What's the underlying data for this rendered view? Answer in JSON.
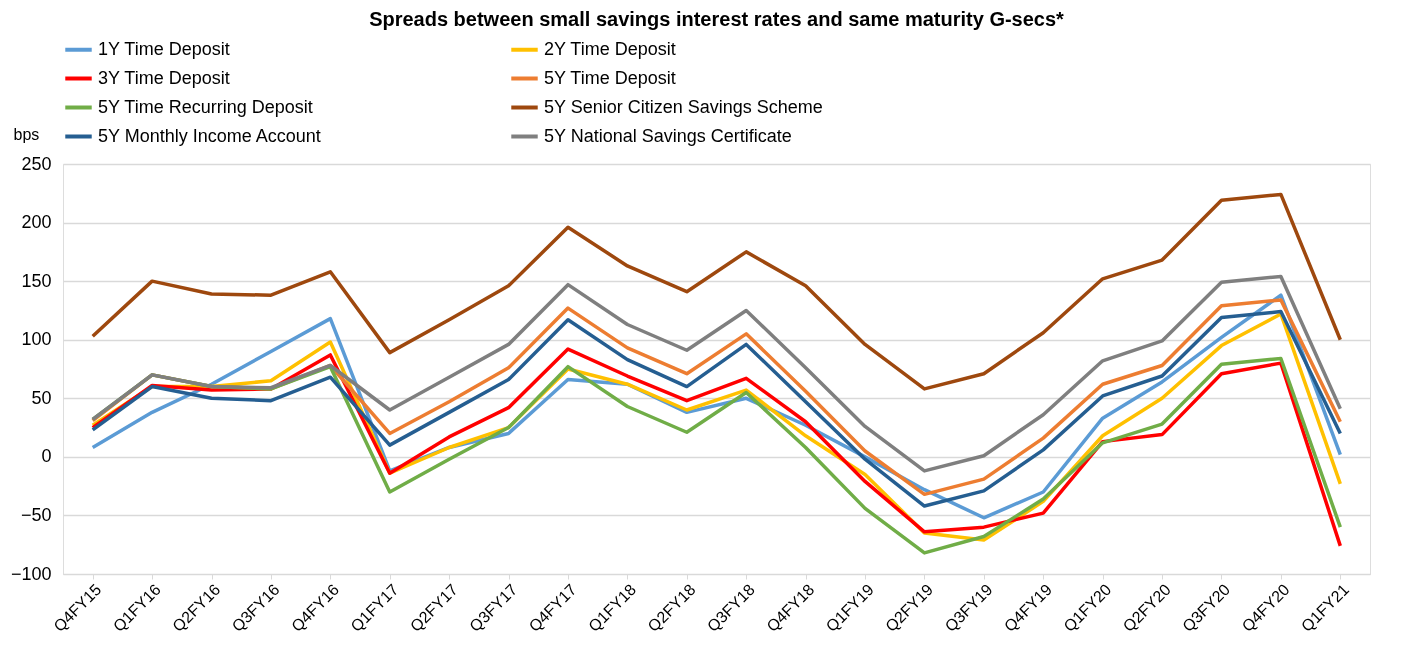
{
  "chart_data": {
    "type": "line",
    "title": "Spreads between small savings interest rates and same maturity G-secs*",
    "ylabel": "bps",
    "categories": [
      "Q4FY15",
      "Q1FY16",
      "Q2FY16",
      "Q3FY16",
      "Q4FY16",
      "Q1FY17",
      "Q2FY17",
      "Q3FY17",
      "Q4FY17",
      "Q1FY18",
      "Q2FY18",
      "Q3FY18",
      "Q4FY18",
      "Q1FY19",
      "Q2FY19",
      "Q3FY19",
      "Q4FY19",
      "Q1FY20",
      "Q2FY20",
      "Q3FY20",
      "Q4FY20",
      "Q1FY21"
    ],
    "series": [
      {
        "name": "1Y Time Deposit",
        "color": "#5b9bd5",
        "values": [
          8,
          38,
          62,
          90,
          118,
          -12,
          8,
          20,
          66,
          62,
          38,
          50,
          27,
          0,
          -28,
          -52,
          -30,
          33,
          64,
          102,
          138,
          2
        ]
      },
      {
        "name": "2Y Time Deposit",
        "color": "#ffc000",
        "values": [
          27,
          60,
          60,
          65,
          98,
          -14,
          8,
          25,
          75,
          62,
          40,
          57,
          18,
          -15,
          -65,
          -71,
          -38,
          18,
          50,
          95,
          122,
          -23
        ]
      },
      {
        "name": "3Y Time Deposit",
        "color": "#ff0000",
        "values": [
          25,
          61,
          57,
          58,
          87,
          -14,
          17,
          42,
          92,
          69,
          48,
          67,
          30,
          -21,
          -64,
          -60,
          -48,
          13,
          19,
          71,
          80,
          -76
        ]
      },
      {
        "name": "5Y Time Deposit",
        "color": "#ed7d31",
        "values": [
          31,
          70,
          60,
          58,
          78,
          20,
          47,
          76,
          127,
          93,
          71,
          105,
          56,
          5,
          -32,
          -19,
          16,
          62,
          78,
          129,
          134,
          30
        ]
      },
      {
        "name": "5Y Time Recurring Deposit",
        "color": "#70ad47",
        "values": [
          32,
          70,
          60,
          58,
          77,
          -30,
          -2,
          25,
          77,
          43,
          21,
          55,
          8,
          -44,
          -82,
          -68,
          -36,
          12,
          28,
          79,
          84,
          -60
        ]
      },
      {
        "name": "5Y Senior Citizen Savings Scheme",
        "color": "#9e480e",
        "values": [
          103,
          150,
          139,
          138,
          158,
          89,
          117,
          146,
          196,
          163,
          141,
          175,
          146,
          96,
          58,
          71,
          106,
          152,
          168,
          219,
          224,
          100
        ]
      },
      {
        "name": "5Y Monthly Income Account",
        "color": "#255e91",
        "values": [
          23,
          60,
          50,
          48,
          68,
          10,
          38,
          66,
          117,
          83,
          60,
          96,
          47,
          -2,
          -42,
          -29,
          6,
          52,
          69,
          119,
          124,
          20
        ]
      },
      {
        "name": "5Y National Savings Certificate",
        "color": "#7f7f7f",
        "values": [
          32,
          70,
          60,
          59,
          78,
          40,
          68,
          96,
          147,
          113,
          91,
          125,
          76,
          26,
          -12,
          1,
          36,
          82,
          99,
          149,
          154,
          41
        ]
      }
    ],
    "ylim": [
      -100,
      250
    ],
    "yticks": [
      -100,
      -50,
      0,
      50,
      100,
      150,
      200,
      250
    ],
    "grid": "y",
    "legend": "top",
    "marker": "none",
    "line_style": "solid"
  }
}
